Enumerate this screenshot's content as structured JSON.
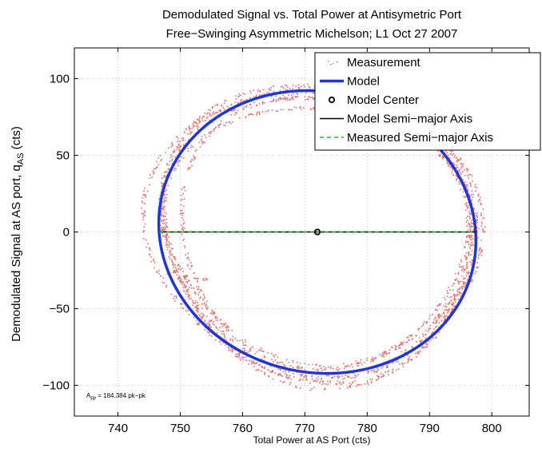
{
  "chart_data": {
    "type": "scatter",
    "title": "Demodulated Signal vs. Total Power at Antisymetric Port",
    "subtitle": "Free−Swinging Asymmetric Michelson; L1 Oct 27 2007",
    "xlabel": "Total Power at AS Port (cts)",
    "ylabel_main": "Demodulated Signal at AS port, q",
    "ylabel_sub": "AS",
    "ylabel_unit": " (cts)",
    "xlim": [
      733,
      806
    ],
    "ylim": [
      -120,
      120
    ],
    "xticks": [
      740,
      750,
      760,
      770,
      780,
      790,
      800
    ],
    "yticks": [
      -100,
      -50,
      0,
      50,
      100
    ],
    "ytick_labels": [
      "−100",
      "−50",
      "0",
      "50",
      "100"
    ],
    "grid": true,
    "legend_position": "top-right",
    "annotation": {
      "prefix": "A",
      "sub": "pp",
      "text": " = 184.384 pk−pk"
    },
    "model": {
      "center": [
        772.0,
        0
      ],
      "semi_major": 25.4,
      "semi_minor": 92.2,
      "tilt_x_per_y": -0.017
    },
    "series": [
      {
        "name": "Measurement",
        "color": "#f26d64",
        "marker": "dot",
        "bands": [
          {
            "rx": 24.8,
            "ry": 91.0,
            "offset": 0.0
          },
          {
            "rx": 25.6,
            "ry": 93.5,
            "offset": 0.5
          },
          {
            "rx": 26.2,
            "ry": 96.0,
            "offset": -0.8
          },
          {
            "rx": 23.6,
            "ry": 88.0,
            "offset": 1.2
          },
          {
            "rx": 25.0,
            "ry": 99.0,
            "offset": 0.2
          },
          {
            "rx": 24.2,
            "ry": 84.0,
            "offset": 0.0
          }
        ],
        "hook": [
          [
            751.5,
            -22
          ],
          [
            749.5,
            -25
          ],
          [
            748.5,
            -27
          ],
          [
            750.5,
            -28.5
          ],
          [
            752.5,
            -30
          ],
          [
            754,
            -31
          ]
        ]
      },
      {
        "name": "Model",
        "color": "#1a35e6"
      },
      {
        "name": "Model Center",
        "color": "#000000",
        "x": 772.0,
        "y": 0
      },
      {
        "name": "Model Semi−major Axis",
        "color": "#000000",
        "x": [
          746.6,
          797.4
        ],
        "y": [
          0,
          0
        ]
      },
      {
        "name": "Measured Semi−major Axis",
        "color": "#22bb22",
        "x": [
          746.6,
          797.4
        ],
        "y": [
          0,
          0
        ]
      }
    ]
  }
}
